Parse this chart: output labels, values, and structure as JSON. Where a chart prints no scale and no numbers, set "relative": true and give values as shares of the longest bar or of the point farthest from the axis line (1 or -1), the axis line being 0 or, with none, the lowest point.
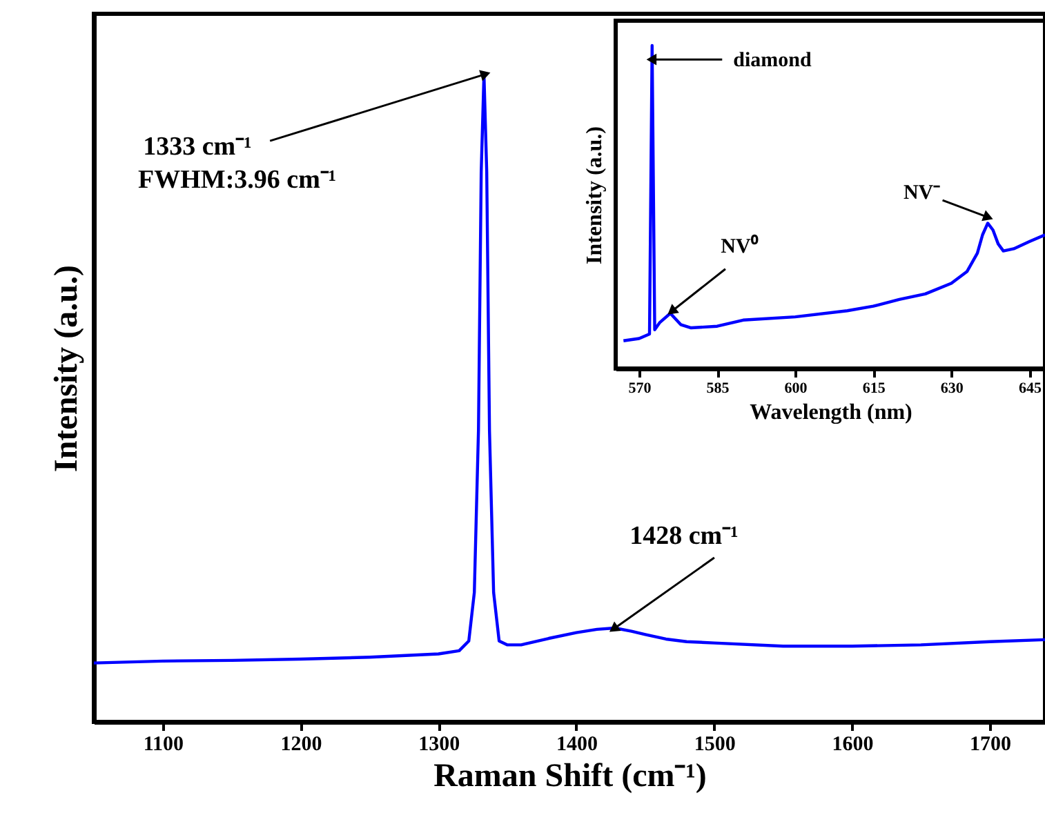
{
  "chart_data": [
    {
      "type": "line",
      "xlabel": "Raman Shift (cm⁻¹)",
      "ylabel": "Intensity (a.u.)",
      "relative": true,
      "xlim": [
        1050,
        1740
      ],
      "xticks": [
        1100,
        1200,
        1300,
        1400,
        1500,
        1600,
        1700
      ],
      "grid": false,
      "tick_labels": "x",
      "marker": "none",
      "line_style": "solid",
      "series": [
        {
          "color": "#0000ff",
          "x": [
            1050,
            1100,
            1150,
            1200,
            1250,
            1300,
            1315,
            1322,
            1326,
            1329,
            1331,
            1333,
            1335,
            1337,
            1340,
            1344,
            1350,
            1360,
            1380,
            1400,
            1415,
            1428,
            1440,
            1450,
            1465,
            1480,
            1500,
            1550,
            1600,
            1650,
            1700,
            1740
          ],
          "values": [
            0.091,
            0.094,
            0.095,
            0.097,
            0.1,
            0.105,
            0.11,
            0.125,
            0.2,
            0.45,
            0.85,
            1.0,
            0.85,
            0.45,
            0.2,
            0.125,
            0.119,
            0.119,
            0.129,
            0.138,
            0.143,
            0.145,
            0.14,
            0.135,
            0.128,
            0.124,
            0.122,
            0.117,
            0.117,
            0.119,
            0.124,
            0.127
          ]
        }
      ],
      "annotations": [
        {
          "text": "1333 cm⁻¹",
          "x": 1333,
          "y": 1.0
        },
        "FWHM:3.96 cm⁻¹",
        {
          "text": "1428 cm⁻¹",
          "x": 1428,
          "y": 0.145
        }
      ]
    },
    {
      "type": "line",
      "xlabel": "Wavelength (nm)",
      "ylabel": "Intensity (a.u.)",
      "relative": true,
      "xlim": [
        565.5,
        648
      ],
      "xticks": [
        570,
        585,
        600,
        615,
        630,
        645
      ],
      "grid": false,
      "tick_labels": "x",
      "marker": "none",
      "line_style": "solid",
      "series": [
        {
          "color": "#0000ff",
          "x": [
            567,
            570,
            572,
            572.5,
            573,
            574,
            576,
            578,
            580,
            585,
            590,
            600,
            610,
            615,
            620,
            625,
            630,
            633,
            635,
            636,
            637,
            638,
            639,
            640,
            642,
            645,
            648
          ],
          "values": [
            0.086,
            0.093,
            0.107,
            1.0,
            0.12,
            0.143,
            0.171,
            0.136,
            0.126,
            0.131,
            0.15,
            0.16,
            0.179,
            0.193,
            0.214,
            0.231,
            0.264,
            0.3,
            0.357,
            0.414,
            0.45,
            0.429,
            0.386,
            0.364,
            0.371,
            0.393,
            0.414
          ]
        }
      ],
      "annotations": [
        {
          "text": "diamond",
          "x": 572.7,
          "y": 0.957
        },
        {
          "text": "NV⁰",
          "x": 576.5,
          "y": 0.18
        },
        {
          "text": "NV⁻",
          "x": 636.8,
          "y": 0.47
        }
      ]
    }
  ]
}
